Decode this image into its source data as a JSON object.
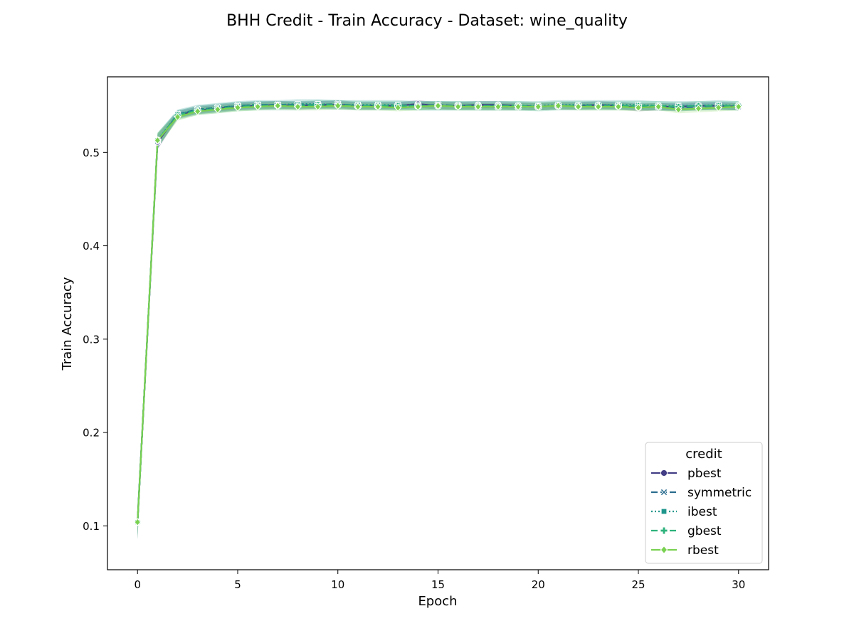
{
  "chart_data": {
    "type": "line",
    "title": "BHH Credit - Train Accuracy - Dataset: wine_quality",
    "xlabel": "Epoch",
    "ylabel": "Train Accuracy",
    "xlim": [
      -1.5,
      31.5
    ],
    "ylim": [
      0.053,
      0.581
    ],
    "xticks": [
      0,
      5,
      10,
      15,
      20,
      25,
      30
    ],
    "xtick_labels": [
      "0",
      "5",
      "10",
      "15",
      "20",
      "25",
      "30"
    ],
    "yticks": [
      0.1,
      0.2,
      0.3,
      0.4,
      0.5
    ],
    "ytick_labels": [
      "0.1",
      "0.2",
      "0.3",
      "0.4",
      "0.5"
    ],
    "grid": false,
    "legend": {
      "title": "credit",
      "placement": "bottom-right"
    },
    "x": [
      0,
      1,
      2,
      3,
      4,
      5,
      6,
      7,
      8,
      9,
      10,
      11,
      12,
      13,
      14,
      15,
      16,
      17,
      18,
      19,
      20,
      21,
      22,
      23,
      24,
      25,
      26,
      27,
      28,
      29,
      30
    ],
    "series": [
      {
        "name": "pbest",
        "color": "#433e85",
        "dash": "solid",
        "marker": "circle",
        "values": [
          0.104,
          0.511,
          0.54,
          0.545,
          0.547,
          0.549,
          0.55,
          0.551,
          0.55,
          0.551,
          0.551,
          0.55,
          0.55,
          0.55,
          0.552,
          0.55,
          0.55,
          0.551,
          0.551,
          0.55,
          0.549,
          0.55,
          0.55,
          0.551,
          0.55,
          0.548,
          0.549,
          0.549,
          0.55,
          0.55,
          0.549
        ],
        "band": 0.004
      },
      {
        "name": "symmetric",
        "color": "#2a6c8e",
        "dash": "dashed",
        "marker": "x",
        "values": [
          0.104,
          0.512,
          0.541,
          0.546,
          0.548,
          0.55,
          0.551,
          0.551,
          0.551,
          0.551,
          0.552,
          0.55,
          0.55,
          0.55,
          0.55,
          0.551,
          0.55,
          0.549,
          0.549,
          0.549,
          0.549,
          0.55,
          0.55,
          0.55,
          0.55,
          0.549,
          0.549,
          0.548,
          0.549,
          0.55,
          0.549
        ],
        "band": 0.004
      },
      {
        "name": "ibest",
        "color": "#1f968b",
        "dash": "dotted",
        "marker": "square",
        "values": [
          0.104,
          0.513,
          0.541,
          0.546,
          0.548,
          0.55,
          0.551,
          0.551,
          0.552,
          0.552,
          0.551,
          0.551,
          0.551,
          0.551,
          0.55,
          0.55,
          0.55,
          0.55,
          0.55,
          0.55,
          0.55,
          0.551,
          0.551,
          0.551,
          0.551,
          0.551,
          0.55,
          0.55,
          0.55,
          0.551,
          0.55
        ],
        "band": 0.005
      },
      {
        "name": "gbest",
        "color": "#2db27d",
        "dash": "dashed",
        "marker": "plus",
        "values": [
          0.104,
          0.513,
          0.54,
          0.545,
          0.547,
          0.549,
          0.55,
          0.55,
          0.55,
          0.551,
          0.551,
          0.55,
          0.55,
          0.55,
          0.55,
          0.55,
          0.55,
          0.55,
          0.55,
          0.55,
          0.549,
          0.55,
          0.55,
          0.55,
          0.55,
          0.55,
          0.55,
          0.549,
          0.55,
          0.55,
          0.55
        ],
        "band": 0.005
      },
      {
        "name": "rbest",
        "color": "#7ad151",
        "dash": "solid",
        "marker": "diamond",
        "values": [
          0.104,
          0.513,
          0.538,
          0.544,
          0.546,
          0.548,
          0.549,
          0.55,
          0.549,
          0.549,
          0.55,
          0.549,
          0.549,
          0.548,
          0.549,
          0.55,
          0.549,
          0.549,
          0.549,
          0.549,
          0.549,
          0.55,
          0.549,
          0.549,
          0.549,
          0.548,
          0.549,
          0.546,
          0.547,
          0.548,
          0.549
        ],
        "band": 0.004
      }
    ]
  }
}
